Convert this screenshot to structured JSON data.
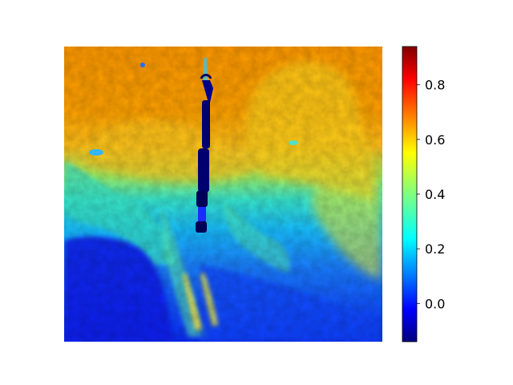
{
  "chart_data": {
    "type": "heatmap",
    "title": "",
    "xlabel": "",
    "ylabel": "",
    "colormap": "jet",
    "colorbar": {
      "vmin": -0.14,
      "vmax": 0.94,
      "ticks": [
        0.0,
        0.2,
        0.4,
        0.6,
        0.8
      ],
      "tick_labels": [
        "0.0",
        "0.2",
        "0.4",
        "0.6",
        "0.8"
      ]
    },
    "image_regions": [
      {
        "region": "upper sky band",
        "approx_value": 0.65,
        "color": "#ff9a00"
      },
      {
        "region": "cloud / bright structure",
        "approx_value": 0.55,
        "color": "#ffd21a"
      },
      {
        "region": "middle transition band",
        "approx_value": 0.28,
        "color": "#27d3ff"
      },
      {
        "region": "lower ground",
        "approx_value": 0.02,
        "color": "#0530ff"
      },
      {
        "region": "vertical rod",
        "approx_value": -0.12,
        "color": "#00008b"
      }
    ]
  }
}
